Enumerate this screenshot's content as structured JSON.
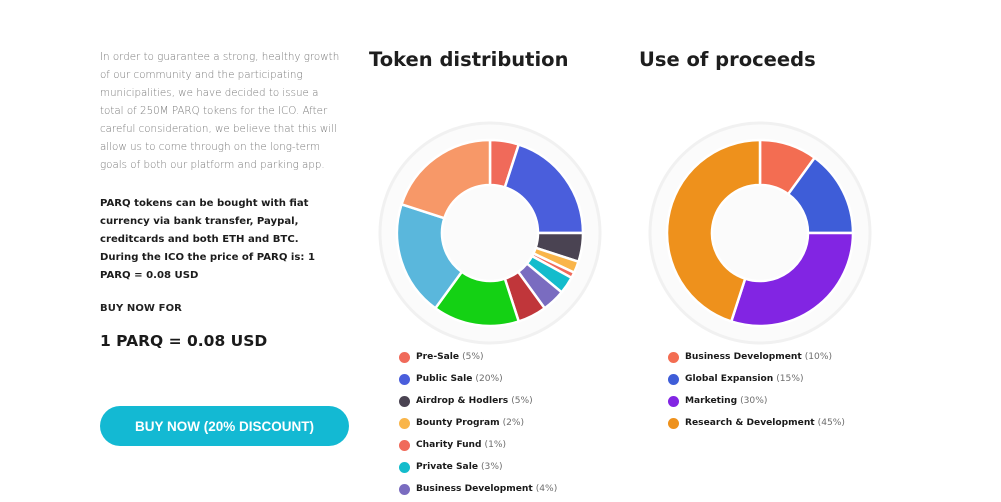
{
  "intro": {
    "paragraph": "In order to guarantee a strong, healthy growth of our community and the participating municipalities, we have decided to issue a total of 250M PARQ tokens for the ICO. After careful consideration, we believe that this will allow us to come through on the long-term goals of both our platform and parking app.",
    "bold_paragraph": "PARQ tokens can be bought with fiat currency via bank transfer, Paypal, creditcards and both ETH and BTC. During the ICO the price of PARQ is: 1 PARQ = 0.08 USD",
    "buy_now_for": "BUY NOW FOR",
    "price": "1 PARQ = 0.08 USD",
    "button_label": "BUY NOW (20% DISCOUNT)"
  },
  "token_distribution": {
    "title": "Token distribution",
    "items": [
      {
        "label": "Pre-Sale",
        "pct": "(5%)",
        "color": "#f06a5a"
      },
      {
        "label": "Public Sale",
        "pct": "(20%)",
        "color": "#4a5edc"
      },
      {
        "label": "Airdrop & Hodlers",
        "pct": "(5%)",
        "color": "#4a4352"
      },
      {
        "label": "Bounty Program",
        "pct": "(2%)",
        "color": "#f9b54a"
      },
      {
        "label": "Charity Fund",
        "pct": "(1%)",
        "color": "#f06a5a"
      },
      {
        "label": "Private Sale",
        "pct": "(3%)",
        "color": "#13bccc"
      },
      {
        "label": "Business Development",
        "pct": "(4%)",
        "color": "#7a6cc0"
      }
    ]
  },
  "use_of_proceeds": {
    "title": "Use of proceeds",
    "items": [
      {
        "label": "Business Development",
        "pct": "(10%)",
        "color": "#f36d52"
      },
      {
        "label": "Global Expansion",
        "pct": "(15%)",
        "color": "#3e5dd8"
      },
      {
        "label": "Marketing",
        "pct": "(30%)",
        "color": "#8225e3"
      },
      {
        "label": "Research & Development",
        "pct": "(45%)",
        "color": "#ee911c"
      }
    ]
  },
  "chart_data": [
    {
      "type": "pie",
      "title": "Token distribution",
      "categories": [
        "Pre-Sale",
        "Public Sale",
        "Airdrop & Hodlers",
        "Bounty Program",
        "Charity Fund",
        "Private Sale",
        "Business Development",
        "",
        "",
        "",
        ""
      ],
      "values": [
        5,
        20,
        5,
        2,
        1,
        3,
        4,
        5,
        15,
        20,
        20
      ],
      "colors": [
        "#f06a5a",
        "#4a5edc",
        "#4a4352",
        "#f9b54a",
        "#f06a5a",
        "#13bccc",
        "#7a6cc0",
        "#c0363a",
        "#14d114",
        "#5ab7dc",
        "#f79868"
      ]
    },
    {
      "type": "pie",
      "title": "Use of proceeds",
      "categories": [
        "Business Development",
        "Global Expansion",
        "Marketing",
        "Research & Development"
      ],
      "values": [
        10,
        15,
        30,
        45
      ],
      "colors": [
        "#f36d52",
        "#3e5dd8",
        "#8225e3",
        "#ee911c"
      ]
    }
  ]
}
